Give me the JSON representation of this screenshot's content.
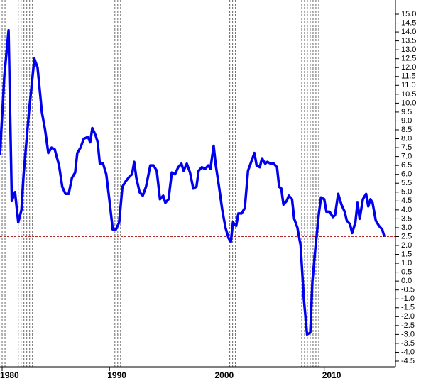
{
  "chart_data": {
    "type": "line",
    "x": [
      1979.8,
      1980.2,
      1980.6,
      1980.9,
      1981.2,
      1981.5,
      1981.8,
      1982.0,
      1982.5,
      1983.0,
      1983.3,
      1983.7,
      1984.0,
      1984.3,
      1984.6,
      1984.9,
      1985.3,
      1985.6,
      1985.9,
      1986.2,
      1986.5,
      1986.8,
      1987.0,
      1987.3,
      1987.6,
      1988.0,
      1988.2,
      1988.4,
      1988.7,
      1988.9,
      1989.1,
      1989.4,
      1989.7,
      1990.0,
      1990.3,
      1990.6,
      1990.9,
      1991.2,
      1991.5,
      1991.9,
      1992.1,
      1992.3,
      1992.5,
      1992.8,
      1993.1,
      1993.4,
      1993.8,
      1994.1,
      1994.4,
      1994.7,
      1995.0,
      1995.2,
      1995.5,
      1995.8,
      1996.1,
      1996.4,
      1996.7,
      1996.9,
      1997.2,
      1997.5,
      1997.8,
      1998.1,
      1998.3,
      1998.6,
      1998.9,
      1999.2,
      1999.4,
      1999.7,
      1999.9,
      2000.2,
      2000.5,
      2000.8,
      2001.1,
      2001.3,
      2001.5,
      2001.8,
      2002.0,
      2002.3,
      2002.6,
      2002.9,
      2003.2,
      2003.5,
      2003.7,
      2004.0,
      2004.2,
      2004.5,
      2004.7,
      2005.0,
      2005.3,
      2005.6,
      2005.8,
      2006.0,
      2006.2,
      2006.5,
      2006.7,
      2007.0,
      2007.2,
      2007.5,
      2007.8,
      2008.1,
      2008.4,
      2008.7,
      2008.9,
      2009.2,
      2009.5,
      2009.7,
      2010.0,
      2010.2,
      2010.5,
      2010.8,
      2011.0,
      2011.3,
      2011.6,
      2011.9,
      2012.1,
      2012.4,
      2012.6,
      2012.9,
      2013.1,
      2013.3,
      2013.6,
      2013.9,
      2014.1,
      2014.3,
      2014.5,
      2014.8,
      2015.1,
      2015.4,
      2015.6
    ],
    "series": [
      {
        "color": "#0000ee",
        "values": [
          7.1,
          11.5,
          14.1,
          4.5,
          5.0,
          3.3,
          4.0,
          6.0,
          9.5,
          12.5,
          12.0,
          9.5,
          8.5,
          7.2,
          7.5,
          7.4,
          6.5,
          5.3,
          4.9,
          4.9,
          5.8,
          6.1,
          7.2,
          7.5,
          8.0,
          8.1,
          7.8,
          8.6,
          8.2,
          7.8,
          6.6,
          6.6,
          6.0,
          4.5,
          2.9,
          2.9,
          3.3,
          5.3,
          5.6,
          5.9,
          6.0,
          6.7,
          5.8,
          5.0,
          4.8,
          5.3,
          6.5,
          6.5,
          6.2,
          4.6,
          4.8,
          4.4,
          4.6,
          6.1,
          6.0,
          6.4,
          6.6,
          6.2,
          6.6,
          6.1,
          5.2,
          5.3,
          6.2,
          6.4,
          6.3,
          6.5,
          6.3,
          7.6,
          6.5,
          5.3,
          4.0,
          3.0,
          2.4,
          2.2,
          3.3,
          3.1,
          3.8,
          3.8,
          4.1,
          6.2,
          6.7,
          7.2,
          6.5,
          6.4,
          6.9,
          6.6,
          6.7,
          6.6,
          6.6,
          6.4,
          5.3,
          5.2,
          4.3,
          4.5,
          4.8,
          4.6,
          3.5,
          3.0,
          2.0,
          -1.0,
          -3.0,
          -2.9,
          0.0,
          2.0,
          3.8,
          4.7,
          4.6,
          3.9,
          3.9,
          3.6,
          3.7,
          4.9,
          4.3,
          3.9,
          3.4,
          3.2,
          2.7,
          3.3,
          4.4,
          3.5,
          4.6,
          4.9,
          4.2,
          4.6,
          4.4,
          3.4,
          3.1,
          2.9,
          2.5
        ]
      }
    ],
    "xlim": [
      1979.8,
      2016.5
    ],
    "xticks": [
      1980,
      1990,
      2000,
      2010
    ],
    "ylim": [
      -4.5,
      15.0
    ],
    "yticks": [
      {
        "value": 15,
        "label": "15.0"
      },
      14.5,
      {
        "value": 14,
        "label": "14.0"
      },
      13.5,
      {
        "value": 13,
        "label": "13.0"
      },
      12.5,
      {
        "value": 12,
        "label": "12.0"
      },
      11.5,
      {
        "value": 11,
        "label": "11.0"
      },
      10.5,
      {
        "value": 10,
        "label": "10.0"
      },
      9.5,
      {
        "value": 9,
        "label": "9.0"
      },
      8.5,
      {
        "value": 8,
        "label": "8.0"
      },
      7.5,
      {
        "value": 7,
        "label": "7.0"
      },
      6.5,
      {
        "value": 6,
        "label": "6.0"
      },
      5.5,
      {
        "value": 5,
        "label": "5.0"
      },
      4.5,
      {
        "value": 4,
        "label": "4.0"
      },
      3.5,
      {
        "value": 3,
        "label": "3.0"
      },
      2.5,
      {
        "value": 2,
        "label": "2.0"
      },
      1.5,
      {
        "value": 1,
        "label": "1.0"
      },
      0.5,
      {
        "value": 0,
        "label": "0.0"
      },
      -0.5,
      {
        "value": -1,
        "label": "-1.0"
      },
      -1.5,
      {
        "value": -2,
        "label": "-2.0"
      },
      -2.5,
      {
        "value": -3,
        "label": "-3.0"
      },
      -3.5,
      {
        "value": -4,
        "label": "-4.0"
      },
      -4.5
    ],
    "y_axis_side": "right",
    "hline": 2.5,
    "hline_color": "#b03030",
    "recessions": [
      [
        1980.0,
        1980.5
      ],
      [
        1981.5,
        1982.9
      ],
      [
        1990.5,
        1991.2
      ],
      [
        2001.2,
        2001.9
      ],
      [
        2007.9,
        2009.5
      ]
    ]
  }
}
